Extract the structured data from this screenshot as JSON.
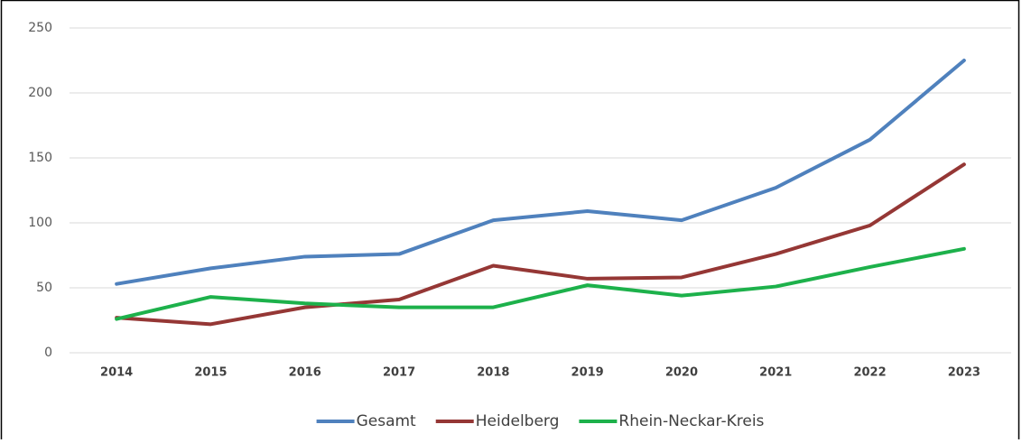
{
  "chart_data": {
    "type": "line",
    "categories": [
      "2014",
      "2015",
      "2016",
      "2017",
      "2018",
      "2019",
      "2020",
      "2021",
      "2022",
      "2023"
    ],
    "series": [
      {
        "name": "Gesamt",
        "color": "#4f81bd",
        "values": [
          53,
          65,
          74,
          76,
          102,
          109,
          102,
          127,
          164,
          225
        ]
      },
      {
        "name": "Heidelberg",
        "color": "#953735",
        "values": [
          27,
          22,
          35,
          41,
          67,
          57,
          58,
          76,
          98,
          145
        ]
      },
      {
        "name": "Rhein-Neckar-Kreis",
        "color": "#1db14b",
        "values": [
          26,
          43,
          38,
          35,
          35,
          52,
          44,
          51,
          66,
          80
        ]
      }
    ],
    "ylim": [
      0,
      250
    ],
    "yticks": [
      0,
      50,
      100,
      150,
      200,
      250
    ],
    "grid": true,
    "legend": "bottom"
  }
}
